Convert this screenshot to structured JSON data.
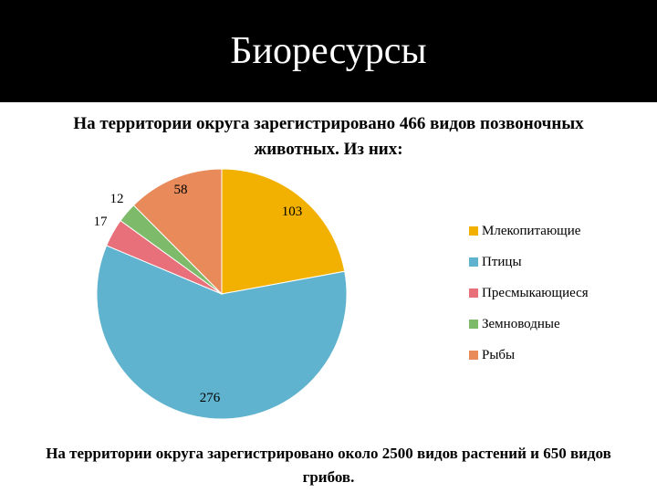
{
  "slide": {
    "title": "Биоресурсы",
    "footer": "На территории округа зарегистрировано около 2500 видов растений и 650 видов грибов."
  },
  "chart_data": {
    "type": "pie",
    "title": "На территории округа зарегистрировано 466 видов позвоночных животных. Из них:",
    "categories": [
      "Млекопитающие",
      "Птицы",
      "Пресмыкающиеся",
      "Земноводные",
      "Рыбы"
    ],
    "values": [
      103,
      276,
      17,
      12,
      58
    ],
    "colors": [
      "#F2B100",
      "#5FB3CE",
      "#E8707A",
      "#7DBB6A",
      "#E88A5A"
    ],
    "data_labels": [
      "103",
      "276",
      "17",
      "12",
      "58"
    ],
    "legend_position": "right"
  }
}
